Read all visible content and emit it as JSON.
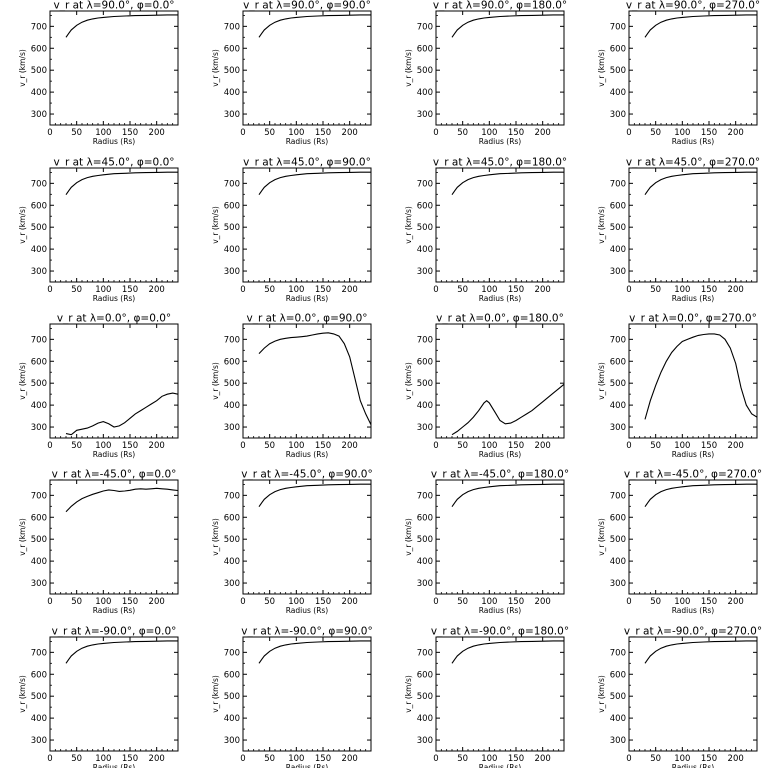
{
  "chart_data": [
    {
      "type": "line",
      "title": "v_r at λ=90.0°, φ=0.0°",
      "xlabel": "Radius (Rs)",
      "ylabel": "v_r (km/s)",
      "xlim": [
        0,
        240
      ],
      "ylim": [
        250,
        770
      ],
      "xticks": [
        "0",
        "50",
        "100",
        "150",
        "200"
      ],
      "yticks": [
        "300",
        "400",
        "500",
        "600",
        "700"
      ],
      "x": [
        30,
        35,
        40,
        50,
        60,
        70,
        80,
        90,
        100,
        120,
        140,
        160,
        180,
        200,
        220,
        240
      ],
      "values": [
        650,
        668,
        684,
        705,
        719,
        728,
        734,
        738,
        741,
        745,
        747,
        749,
        750,
        751,
        752,
        752
      ]
    },
    {
      "type": "line",
      "title": "v_r at λ=90.0°, φ=90.0°",
      "xlabel": "Radius (Rs)",
      "ylabel": "v_r (km/s)",
      "xlim": [
        0,
        240
      ],
      "ylim": [
        250,
        770
      ],
      "xticks": [
        "0",
        "50",
        "100",
        "150",
        "200"
      ],
      "yticks": [
        "300",
        "400",
        "500",
        "600",
        "700"
      ],
      "x": [
        30,
        35,
        40,
        50,
        60,
        70,
        80,
        90,
        100,
        120,
        140,
        160,
        180,
        200,
        220,
        240
      ],
      "values": [
        650,
        668,
        684,
        705,
        719,
        728,
        734,
        738,
        741,
        745,
        747,
        749,
        750,
        751,
        752,
        752
      ]
    },
    {
      "type": "line",
      "title": "v_r at λ=90.0°, φ=180.0°",
      "xlabel": "Radius (Rs)",
      "ylabel": "v_r (km/s)",
      "xlim": [
        0,
        240
      ],
      "ylim": [
        250,
        770
      ],
      "xticks": [
        "0",
        "50",
        "100",
        "150",
        "200"
      ],
      "yticks": [
        "300",
        "400",
        "500",
        "600",
        "700"
      ],
      "x": [
        30,
        35,
        40,
        50,
        60,
        70,
        80,
        90,
        100,
        120,
        140,
        160,
        180,
        200,
        220,
        240
      ],
      "values": [
        650,
        668,
        684,
        705,
        719,
        728,
        734,
        738,
        741,
        745,
        747,
        749,
        750,
        751,
        752,
        752
      ]
    },
    {
      "type": "line",
      "title": "v_r at λ=90.0°, φ=270.0°",
      "xlabel": "Radius (Rs)",
      "ylabel": "v_r (km/s)",
      "xlim": [
        0,
        240
      ],
      "ylim": [
        250,
        770
      ],
      "xticks": [
        "0",
        "50",
        "100",
        "150",
        "200"
      ],
      "yticks": [
        "300",
        "400",
        "500",
        "600",
        "700"
      ],
      "x": [
        30,
        35,
        40,
        50,
        60,
        70,
        80,
        90,
        100,
        120,
        140,
        160,
        180,
        200,
        220,
        240
      ],
      "values": [
        650,
        668,
        684,
        705,
        719,
        728,
        734,
        738,
        741,
        745,
        747,
        749,
        750,
        751,
        752,
        752
      ]
    },
    {
      "type": "line",
      "title": "v_r at λ=45.0°, φ=0.0°",
      "xlabel": "Radius (Rs)",
      "ylabel": "v_r (km/s)",
      "xlim": [
        0,
        240
      ],
      "ylim": [
        250,
        770
      ],
      "xticks": [
        "0",
        "50",
        "100",
        "150",
        "200"
      ],
      "yticks": [
        "300",
        "400",
        "500",
        "600",
        "700"
      ],
      "x": [
        30,
        35,
        40,
        50,
        60,
        70,
        80,
        90,
        100,
        120,
        140,
        160,
        180,
        200,
        220,
        240
      ],
      "values": [
        648,
        666,
        682,
        703,
        717,
        726,
        732,
        736,
        739,
        744,
        746,
        748,
        749,
        750,
        751,
        751
      ]
    },
    {
      "type": "line",
      "title": "v_r at λ=45.0°, φ=90.0°",
      "xlabel": "Radius (Rs)",
      "ylabel": "v_r (km/s)",
      "xlim": [
        0,
        240
      ],
      "ylim": [
        250,
        770
      ],
      "xticks": [
        "0",
        "50",
        "100",
        "150",
        "200"
      ],
      "yticks": [
        "300",
        "400",
        "500",
        "600",
        "700"
      ],
      "x": [
        30,
        35,
        40,
        50,
        60,
        70,
        80,
        90,
        100,
        120,
        140,
        160,
        180,
        200,
        220,
        240
      ],
      "values": [
        648,
        666,
        682,
        703,
        717,
        726,
        732,
        736,
        739,
        744,
        746,
        748,
        749,
        750,
        751,
        751
      ]
    },
    {
      "type": "line",
      "title": "v_r at λ=45.0°, φ=180.0°",
      "xlabel": "Radius (Rs)",
      "ylabel": "v_r (km/s)",
      "xlim": [
        0,
        240
      ],
      "ylim": [
        250,
        770
      ],
      "xticks": [
        "0",
        "50",
        "100",
        "150",
        "200"
      ],
      "yticks": [
        "300",
        "400",
        "500",
        "600",
        "700"
      ],
      "x": [
        30,
        35,
        40,
        50,
        60,
        70,
        80,
        90,
        100,
        120,
        140,
        160,
        180,
        200,
        220,
        240
      ],
      "values": [
        648,
        666,
        682,
        703,
        717,
        726,
        732,
        736,
        739,
        744,
        746,
        748,
        749,
        750,
        751,
        751
      ]
    },
    {
      "type": "line",
      "title": "v_r at λ=45.0°, φ=270.0°",
      "xlabel": "Radius (Rs)",
      "ylabel": "v_r (km/s)",
      "xlim": [
        0,
        240
      ],
      "ylim": [
        250,
        770
      ],
      "xticks": [
        "0",
        "50",
        "100",
        "150",
        "200"
      ],
      "yticks": [
        "300",
        "400",
        "500",
        "600",
        "700"
      ],
      "x": [
        30,
        35,
        40,
        50,
        60,
        70,
        80,
        90,
        100,
        120,
        140,
        160,
        180,
        200,
        220,
        240
      ],
      "values": [
        648,
        666,
        682,
        703,
        717,
        726,
        732,
        736,
        739,
        744,
        746,
        748,
        749,
        750,
        751,
        751
      ]
    },
    {
      "type": "line",
      "title": "v_r at λ=0.0°, φ=0.0°",
      "xlabel": "Radius (Rs)",
      "ylabel": "v_r (km/s)",
      "xlim": [
        0,
        240
      ],
      "ylim": [
        250,
        770
      ],
      "xticks": [
        "0",
        "50",
        "100",
        "150",
        "200"
      ],
      "yticks": [
        "300",
        "400",
        "500",
        "600",
        "700"
      ],
      "x": [
        30,
        40,
        50,
        60,
        70,
        80,
        90,
        100,
        110,
        120,
        130,
        140,
        150,
        160,
        170,
        180,
        190,
        200,
        210,
        220,
        230,
        240
      ],
      "values": [
        270,
        265,
        285,
        290,
        295,
        305,
        318,
        325,
        315,
        300,
        305,
        320,
        340,
        360,
        375,
        390,
        405,
        420,
        440,
        450,
        455,
        450
      ]
    },
    {
      "type": "line",
      "title": "v_r at λ=0.0°, φ=90.0°",
      "xlabel": "Radius (Rs)",
      "ylabel": "v_r (km/s)",
      "xlim": [
        0,
        240
      ],
      "ylim": [
        250,
        770
      ],
      "xticks": [
        "0",
        "50",
        "100",
        "150",
        "200"
      ],
      "yticks": [
        "300",
        "400",
        "500",
        "600",
        "700"
      ],
      "x": [
        30,
        40,
        50,
        60,
        70,
        80,
        90,
        100,
        110,
        120,
        130,
        140,
        150,
        160,
        170,
        180,
        190,
        200,
        210,
        220,
        230,
        240
      ],
      "values": [
        635,
        660,
        680,
        692,
        700,
        705,
        708,
        710,
        712,
        715,
        720,
        725,
        728,
        730,
        725,
        715,
        680,
        620,
        520,
        420,
        360,
        310
      ]
    },
    {
      "type": "line",
      "title": "v_r at λ=0.0°, φ=180.0°",
      "xlabel": "Radius (Rs)",
      "ylabel": "v_r (km/s)",
      "xlim": [
        0,
        240
      ],
      "ylim": [
        250,
        770
      ],
      "xticks": [
        "0",
        "50",
        "100",
        "150",
        "200"
      ],
      "yticks": [
        "300",
        "400",
        "500",
        "600",
        "700"
      ],
      "x": [
        30,
        40,
        50,
        60,
        70,
        80,
        90,
        95,
        100,
        110,
        120,
        130,
        140,
        150,
        160,
        170,
        180,
        190,
        200,
        210,
        220,
        230,
        240
      ],
      "values": [
        265,
        280,
        300,
        320,
        345,
        375,
        410,
        420,
        410,
        370,
        330,
        315,
        318,
        330,
        345,
        360,
        375,
        395,
        415,
        435,
        455,
        475,
        495
      ]
    },
    {
      "type": "line",
      "title": "v_r at λ=0.0°, φ=270.0°",
      "xlabel": "Radius (Rs)",
      "ylabel": "v_r (km/s)",
      "xlim": [
        0,
        240
      ],
      "ylim": [
        250,
        770
      ],
      "xticks": [
        "0",
        "50",
        "100",
        "150",
        "200"
      ],
      "yticks": [
        "300",
        "400",
        "500",
        "600",
        "700"
      ],
      "x": [
        30,
        40,
        50,
        60,
        70,
        80,
        90,
        100,
        110,
        120,
        130,
        140,
        150,
        160,
        170,
        180,
        190,
        200,
        210,
        220,
        230,
        240
      ],
      "values": [
        335,
        420,
        490,
        550,
        600,
        640,
        668,
        690,
        700,
        710,
        718,
        722,
        725,
        725,
        720,
        700,
        660,
        590,
        480,
        400,
        360,
        345
      ]
    },
    {
      "type": "line",
      "title": "v_r at λ=-45.0°, φ=0.0°",
      "xlabel": "Radius (Rs)",
      "ylabel": "v_r (km/s)",
      "xlim": [
        0,
        240
      ],
      "ylim": [
        250,
        770
      ],
      "xticks": [
        "0",
        "50",
        "100",
        "150",
        "200"
      ],
      "yticks": [
        "300",
        "400",
        "500",
        "600",
        "700"
      ],
      "x": [
        30,
        40,
        50,
        60,
        70,
        80,
        90,
        100,
        110,
        120,
        130,
        140,
        150,
        160,
        170,
        180,
        190,
        200,
        210,
        220,
        230,
        240
      ],
      "values": [
        625,
        650,
        670,
        685,
        695,
        705,
        712,
        720,
        725,
        722,
        718,
        720,
        723,
        728,
        730,
        728,
        730,
        732,
        730,
        728,
        725,
        722
      ]
    },
    {
      "type": "line",
      "title": "v_r at λ=-45.0°, φ=90.0°",
      "xlabel": "Radius (Rs)",
      "ylabel": "v_r (km/s)",
      "xlim": [
        0,
        240
      ],
      "ylim": [
        250,
        770
      ],
      "xticks": [
        "0",
        "50",
        "100",
        "150",
        "200"
      ],
      "yticks": [
        "300",
        "400",
        "500",
        "600",
        "700"
      ],
      "x": [
        30,
        35,
        40,
        50,
        60,
        70,
        80,
        90,
        100,
        120,
        140,
        160,
        180,
        200,
        220,
        240
      ],
      "values": [
        648,
        666,
        682,
        703,
        717,
        726,
        732,
        736,
        739,
        744,
        746,
        748,
        749,
        750,
        751,
        751
      ]
    },
    {
      "type": "line",
      "title": "v_r at λ=-45.0°, φ=180.0°",
      "xlabel": "Radius (Rs)",
      "ylabel": "v_r (km/s)",
      "xlim": [
        0,
        240
      ],
      "ylim": [
        250,
        770
      ],
      "xticks": [
        "0",
        "50",
        "100",
        "150",
        "200"
      ],
      "yticks": [
        "300",
        "400",
        "500",
        "600",
        "700"
      ],
      "x": [
        30,
        35,
        40,
        50,
        60,
        70,
        80,
        90,
        100,
        120,
        140,
        160,
        180,
        200,
        220,
        240
      ],
      "values": [
        648,
        666,
        682,
        703,
        717,
        726,
        732,
        736,
        739,
        744,
        746,
        748,
        749,
        750,
        751,
        751
      ]
    },
    {
      "type": "line",
      "title": "v_r at λ=-45.0°, φ=270.0°",
      "xlabel": "Radius (Rs)",
      "ylabel": "v_r (km/s)",
      "xlim": [
        0,
        240
      ],
      "ylim": [
        250,
        770
      ],
      "xticks": [
        "0",
        "50",
        "100",
        "150",
        "200"
      ],
      "yticks": [
        "300",
        "400",
        "500",
        "600",
        "700"
      ],
      "x": [
        30,
        35,
        40,
        50,
        60,
        70,
        80,
        90,
        100,
        120,
        140,
        160,
        180,
        200,
        220,
        240
      ],
      "values": [
        648,
        666,
        682,
        703,
        717,
        726,
        732,
        736,
        739,
        744,
        746,
        748,
        749,
        750,
        751,
        751
      ]
    },
    {
      "type": "line",
      "title": "v_r at λ=-90.0°, φ=0.0°",
      "xlabel": "Radius (Rs)",
      "ylabel": "v_r (km/s)",
      "xlim": [
        0,
        240
      ],
      "ylim": [
        250,
        770
      ],
      "xticks": [
        "0",
        "50",
        "100",
        "150",
        "200"
      ],
      "yticks": [
        "300",
        "400",
        "500",
        "600",
        "700"
      ],
      "x": [
        30,
        35,
        40,
        50,
        60,
        70,
        80,
        90,
        100,
        120,
        140,
        160,
        180,
        200,
        220,
        240
      ],
      "values": [
        650,
        668,
        684,
        705,
        719,
        728,
        734,
        738,
        741,
        745,
        747,
        749,
        750,
        751,
        752,
        752
      ]
    },
    {
      "type": "line",
      "title": "v_r at λ=-90.0°, φ=90.0°",
      "xlabel": "Radius (Rs)",
      "ylabel": "v_r (km/s)",
      "xlim": [
        0,
        240
      ],
      "ylim": [
        250,
        770
      ],
      "xticks": [
        "0",
        "50",
        "100",
        "150",
        "200"
      ],
      "yticks": [
        "300",
        "400",
        "500",
        "600",
        "700"
      ],
      "x": [
        30,
        35,
        40,
        50,
        60,
        70,
        80,
        90,
        100,
        120,
        140,
        160,
        180,
        200,
        220,
        240
      ],
      "values": [
        650,
        668,
        684,
        705,
        719,
        728,
        734,
        738,
        741,
        745,
        747,
        749,
        750,
        751,
        752,
        752
      ]
    },
    {
      "type": "line",
      "title": "v_r at λ=-90.0°, φ=180.0°",
      "xlabel": "Radius (Rs)",
      "ylabel": "v_r (km/s)",
      "xlim": [
        0,
        240
      ],
      "ylim": [
        250,
        770
      ],
      "xticks": [
        "0",
        "50",
        "100",
        "150",
        "200"
      ],
      "yticks": [
        "300",
        "400",
        "500",
        "600",
        "700"
      ],
      "x": [
        30,
        35,
        40,
        50,
        60,
        70,
        80,
        90,
        100,
        120,
        140,
        160,
        180,
        200,
        220,
        240
      ],
      "values": [
        650,
        668,
        684,
        705,
        719,
        728,
        734,
        738,
        741,
        745,
        747,
        749,
        750,
        751,
        752,
        752
      ]
    },
    {
      "type": "line",
      "title": "v_r at λ=-90.0°, φ=270.0°",
      "xlabel": "Radius (Rs)",
      "ylabel": "v_r (km/s)",
      "xlim": [
        0,
        240
      ],
      "ylim": [
        250,
        770
      ],
      "xticks": [
        "0",
        "50",
        "100",
        "150",
        "200"
      ],
      "yticks": [
        "300",
        "400",
        "500",
        "600",
        "700"
      ],
      "x": [
        30,
        35,
        40,
        50,
        60,
        70,
        80,
        90,
        100,
        120,
        140,
        160,
        180,
        200,
        220,
        240
      ],
      "values": [
        650,
        668,
        684,
        705,
        719,
        728,
        734,
        738,
        741,
        745,
        747,
        749,
        750,
        751,
        752,
        752
      ]
    }
  ]
}
